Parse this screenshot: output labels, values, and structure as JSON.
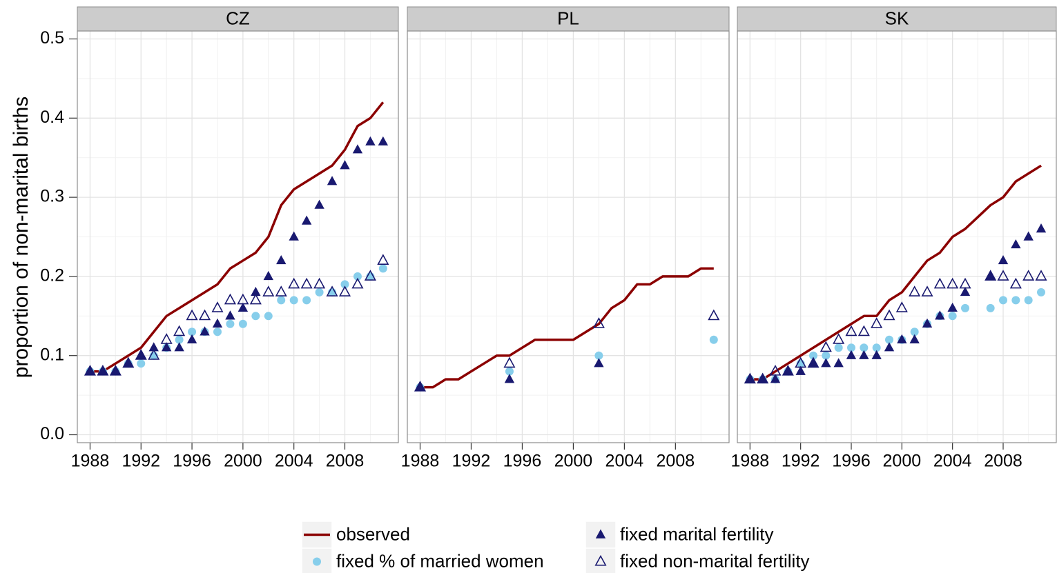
{
  "chart_data": {
    "type": "line",
    "y_label": "proportion of non-marital births",
    "ylim": [
      -0.01,
      0.51
    ],
    "yticks": [
      {
        "value": 0,
        "label": "0.0"
      },
      0.1,
      0.2,
      0.3,
      0.4,
      0.5
    ],
    "xlim": [
      1987,
      2012.2
    ],
    "xticks": [
      1988,
      1992,
      1996,
      2000,
      2004,
      2008
    ],
    "grid": true,
    "legend": [
      {
        "name": "observed",
        "color": "#8b0000",
        "shape": "line"
      },
      {
        "name": "fixed % of married women",
        "color": "#87ceeb",
        "shape": "circle"
      },
      {
        "name": "fixed marital fertility",
        "color": "#191970",
        "shape": "filled-triangle"
      },
      {
        "name": "fixed non-marital fertility",
        "color": "#191970",
        "shape": "open-triangle"
      }
    ],
    "panels": [
      {
        "title": "CZ",
        "x": [
          1988,
          1989,
          1990,
          1991,
          1992,
          1993,
          1994,
          1995,
          1996,
          1997,
          1998,
          1999,
          2000,
          2001,
          2002,
          2003,
          2004,
          2005,
          2006,
          2007,
          2008,
          2009,
          2010,
          2011
        ],
        "series": [
          [
            0.08,
            0.08,
            0.09,
            0.1,
            0.11,
            0.13,
            0.15,
            0.16,
            0.17,
            0.18,
            0.19,
            0.21,
            0.22,
            0.23,
            0.25,
            0.29,
            0.31,
            0.32,
            0.33,
            0.34,
            0.36,
            0.39,
            0.4,
            0.42
          ],
          [
            0.08,
            0.08,
            0.08,
            0.09,
            0.09,
            0.1,
            0.11,
            0.12,
            0.13,
            0.13,
            0.13,
            0.14,
            0.14,
            0.15,
            0.15,
            0.17,
            0.17,
            0.17,
            0.18,
            0.18,
            0.19,
            0.2,
            0.2,
            0.21
          ],
          [
            0.08,
            0.08,
            0.08,
            0.09,
            0.1,
            0.11,
            0.11,
            0.11,
            0.12,
            0.13,
            0.14,
            0.15,
            0.16,
            0.18,
            0.2,
            0.22,
            0.25,
            0.27,
            0.29,
            0.32,
            0.34,
            0.36,
            0.37,
            0.37
          ],
          [
            0.08,
            0.08,
            0.08,
            0.09,
            0.1,
            0.1,
            0.12,
            0.13,
            0.15,
            0.15,
            0.16,
            0.17,
            0.17,
            0.17,
            0.18,
            0.18,
            0.19,
            0.19,
            0.19,
            0.18,
            0.18,
            0.19,
            0.2,
            0.22
          ]
        ]
      },
      {
        "title": "PL",
        "x": [
          1988,
          1989,
          1990,
          1991,
          1992,
          1993,
          1994,
          1995,
          1996,
          1997,
          1998,
          1999,
          2000,
          2001,
          2002,
          2003,
          2004,
          2005,
          2006,
          2007,
          2008,
          2009,
          2010,
          2011
        ],
        "series": [
          [
            0.06,
            0.06,
            0.07,
            0.07,
            0.08,
            0.09,
            0.1,
            0.1,
            0.11,
            0.12,
            0.12,
            0.12,
            0.12,
            0.13,
            0.14,
            0.16,
            0.17,
            0.19,
            0.19,
            0.2,
            0.2,
            0.2,
            0.21,
            0.21
          ],
          [
            0.06,
            null,
            null,
            null,
            null,
            null,
            null,
            0.08,
            null,
            null,
            null,
            null,
            null,
            null,
            0.1,
            null,
            null,
            null,
            null,
            null,
            null,
            null,
            null,
            0.12
          ],
          [
            0.06,
            null,
            null,
            null,
            null,
            null,
            null,
            0.07,
            null,
            null,
            null,
            null,
            null,
            null,
            0.09,
            null,
            null,
            null,
            null,
            null,
            null,
            null,
            null,
            null
          ],
          [
            0.06,
            null,
            null,
            null,
            null,
            null,
            null,
            0.09,
            null,
            null,
            null,
            null,
            null,
            null,
            0.14,
            null,
            null,
            null,
            null,
            null,
            null,
            null,
            null,
            0.15
          ]
        ]
      },
      {
        "title": "SK",
        "x": [
          1988,
          1989,
          1990,
          1991,
          1992,
          1993,
          1994,
          1995,
          1996,
          1997,
          1998,
          1999,
          2000,
          2001,
          2002,
          2003,
          2004,
          2005,
          2006,
          2007,
          2008,
          2009,
          2010,
          2011
        ],
        "series": [
          [
            0.07,
            0.07,
            0.08,
            0.09,
            0.1,
            0.11,
            0.12,
            0.13,
            0.14,
            0.15,
            0.15,
            0.17,
            0.18,
            0.2,
            0.22,
            0.23,
            0.25,
            0.26,
            0.275,
            0.29,
            0.3,
            0.32,
            0.33,
            0.34
          ],
          [
            0.07,
            0.07,
            0.07,
            0.08,
            0.09,
            0.1,
            0.1,
            0.11,
            0.11,
            0.11,
            0.11,
            0.12,
            0.12,
            0.13,
            0.14,
            0.15,
            0.15,
            0.16,
            null,
            0.16,
            0.17,
            0.17,
            0.17,
            0.18
          ],
          [
            0.07,
            0.07,
            0.07,
            0.08,
            0.08,
            0.09,
            0.09,
            0.09,
            0.1,
            0.1,
            0.1,
            0.11,
            0.12,
            0.12,
            0.14,
            0.15,
            0.16,
            0.18,
            null,
            0.2,
            0.22,
            0.24,
            0.25,
            0.26
          ],
          [
            0.07,
            0.07,
            0.08,
            0.08,
            0.09,
            0.09,
            0.11,
            0.12,
            0.13,
            0.13,
            0.14,
            0.15,
            0.16,
            0.18,
            0.18,
            0.19,
            0.19,
            0.19,
            null,
            0.2,
            0.2,
            0.19,
            0.2,
            0.2
          ]
        ]
      }
    ]
  }
}
